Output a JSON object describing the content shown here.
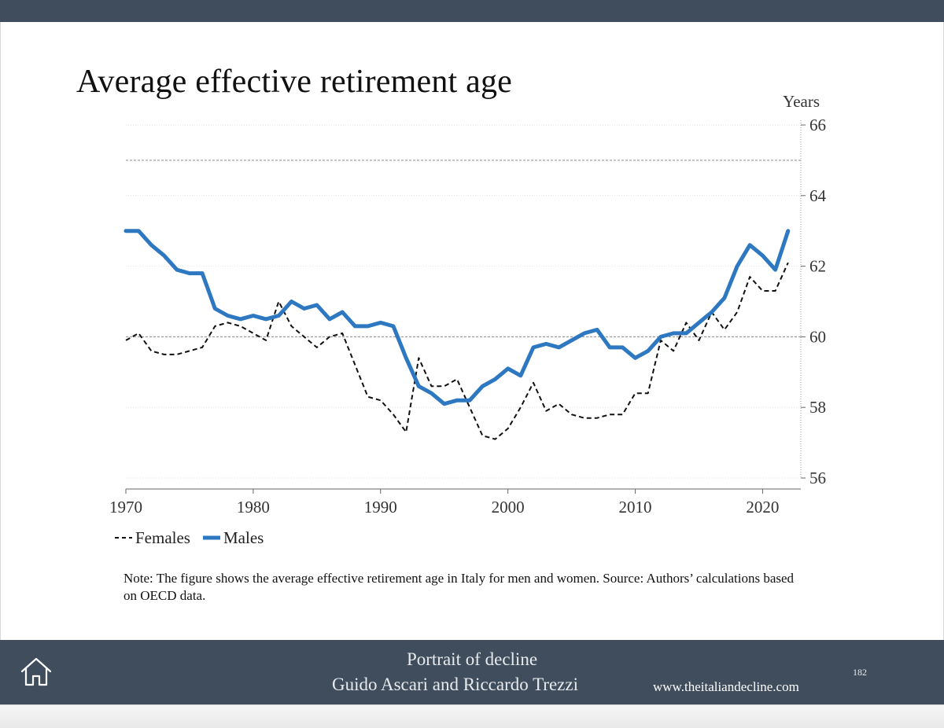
{
  "slide": {
    "title": "Average effective retirement age",
    "note": "Note: The figure shows the average effective retirement age in Italy for men and women. Source: Authors’ calculations based on OECD data.",
    "footer": {
      "line1": "Portrait of decline",
      "line2": "Guido Ascari and Riccardo Trezzi",
      "url": "www.theitaliandecline.com",
      "page_number": "182",
      "home_icon": "home-icon"
    }
  },
  "chart_data": {
    "type": "line",
    "title": "Average effective retirement age",
    "ylabel": "Years",
    "xlabel": "",
    "xlim": [
      1970,
      2023
    ],
    "ylim": [
      56,
      66
    ],
    "x_ticks": [
      "1970",
      "1980",
      "1990",
      "2000",
      "2010",
      "2020"
    ],
    "y_ticks": [
      "56",
      "58",
      "60",
      "62",
      "64",
      "66"
    ],
    "y_axis_side": "right",
    "reference_lines": [
      60,
      65
    ],
    "grid": true,
    "legend": "bottom-left",
    "x": [
      1970,
      1971,
      1972,
      1973,
      1974,
      1975,
      1976,
      1977,
      1978,
      1979,
      1980,
      1981,
      1982,
      1983,
      1984,
      1985,
      1986,
      1987,
      1988,
      1989,
      1990,
      1991,
      1992,
      1993,
      1994,
      1995,
      1996,
      1997,
      1998,
      1999,
      2000,
      2001,
      2002,
      2003,
      2004,
      2005,
      2006,
      2007,
      2008,
      2009,
      2010,
      2011,
      2012,
      2013,
      2014,
      2015,
      2016,
      2017,
      2018,
      2019,
      2020,
      2021,
      2022
    ],
    "series": [
      {
        "name": "Females",
        "color": "#111111",
        "style": "dashed",
        "values": [
          59.9,
          60.1,
          59.6,
          59.5,
          59.5,
          59.6,
          59.7,
          60.3,
          60.4,
          60.3,
          60.1,
          59.9,
          61.0,
          60.3,
          60.0,
          59.7,
          60.0,
          60.1,
          59.2,
          58.3,
          58.2,
          57.8,
          57.3,
          59.4,
          58.6,
          58.6,
          58.8,
          58.0,
          57.2,
          57.1,
          57.4,
          58.0,
          58.7,
          57.9,
          58.1,
          57.8,
          57.7,
          57.7,
          57.8,
          57.8,
          58.4,
          58.4,
          59.9,
          59.6,
          60.4,
          59.9,
          60.7,
          60.2,
          60.7,
          61.7,
          61.3,
          61.3,
          62.1
        ]
      },
      {
        "name": "Males",
        "color": "#2d78c0",
        "style": "solid",
        "values": [
          63.0,
          63.0,
          62.6,
          62.3,
          61.9,
          61.8,
          61.8,
          60.8,
          60.6,
          60.5,
          60.6,
          60.5,
          60.6,
          61.0,
          60.8,
          60.9,
          60.5,
          60.7,
          60.3,
          60.3,
          60.4,
          60.3,
          59.4,
          58.6,
          58.4,
          58.1,
          58.2,
          58.2,
          58.6,
          58.8,
          59.1,
          58.9,
          59.7,
          59.8,
          59.7,
          59.9,
          60.1,
          60.2,
          59.7,
          59.7,
          59.4,
          59.6,
          60.0,
          60.1,
          60.1,
          60.4,
          60.7,
          61.1,
          62.0,
          62.6,
          62.3,
          61.9,
          63.0
        ]
      }
    ]
  }
}
